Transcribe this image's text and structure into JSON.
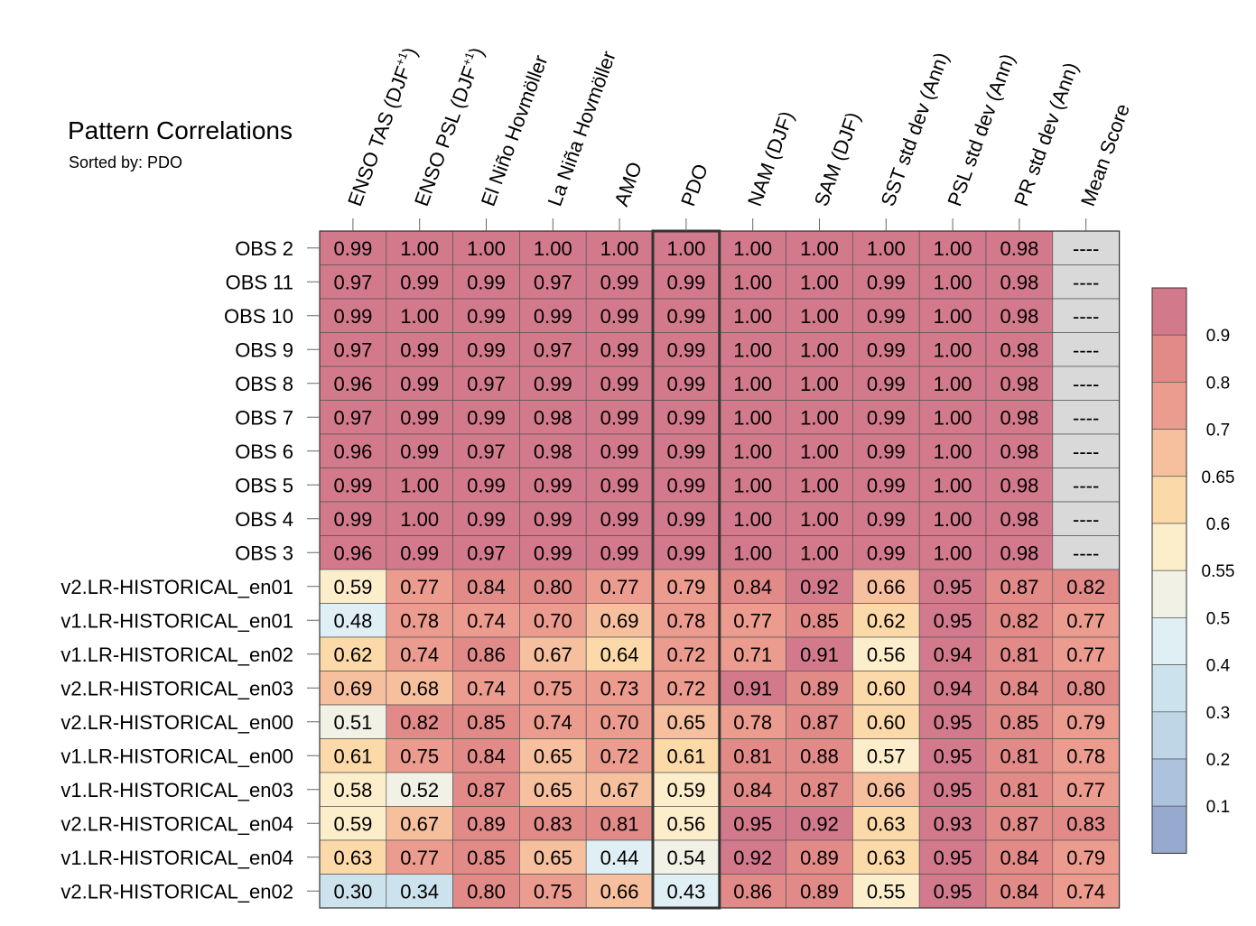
{
  "chart_data": {
    "type": "heatmap",
    "title": "Pattern Correlations",
    "subtitle": "Sorted by: PDO",
    "columns": [
      {
        "pre": "ENSO TAS (DJF",
        "sup": "+1",
        "post": ")"
      },
      {
        "pre": "ENSO PSL (DJF",
        "sup": "+1",
        "post": ")"
      },
      {
        "pre": "El Niño Hovmöller",
        "sup": "",
        "post": ""
      },
      {
        "pre": "La Niña Hovmöller",
        "sup": "",
        "post": ""
      },
      {
        "pre": "AMO",
        "sup": "",
        "post": ""
      },
      {
        "pre": "PDO",
        "sup": "",
        "post": ""
      },
      {
        "pre": "NAM (DJF)",
        "sup": "",
        "post": ""
      },
      {
        "pre": "SAM (DJF)",
        "sup": "",
        "post": ""
      },
      {
        "pre": "SST std dev (Ann)",
        "sup": "",
        "post": ""
      },
      {
        "pre": "PSL std dev (Ann)",
        "sup": "",
        "post": ""
      },
      {
        "pre": "PR std dev (Ann)",
        "sup": "",
        "post": ""
      },
      {
        "pre": "Mean Score",
        "sup": "",
        "post": ""
      }
    ],
    "highlight_column": "PDO",
    "rows": [
      {
        "label": "OBS 2",
        "values": [
          "0.99",
          "1.00",
          "1.00",
          "1.00",
          "1.00",
          "1.00",
          "1.00",
          "1.00",
          "1.00",
          "1.00",
          "0.98",
          "----"
        ]
      },
      {
        "label": "OBS 11",
        "values": [
          "0.97",
          "0.99",
          "0.99",
          "0.97",
          "0.99",
          "0.99",
          "1.00",
          "1.00",
          "0.99",
          "1.00",
          "0.98",
          "----"
        ]
      },
      {
        "label": "OBS 10",
        "values": [
          "0.99",
          "1.00",
          "0.99",
          "0.99",
          "0.99",
          "0.99",
          "1.00",
          "1.00",
          "0.99",
          "1.00",
          "0.98",
          "----"
        ]
      },
      {
        "label": "OBS 9",
        "values": [
          "0.97",
          "0.99",
          "0.99",
          "0.97",
          "0.99",
          "0.99",
          "1.00",
          "1.00",
          "0.99",
          "1.00",
          "0.98",
          "----"
        ]
      },
      {
        "label": "OBS 8",
        "values": [
          "0.96",
          "0.99",
          "0.97",
          "0.99",
          "0.99",
          "0.99",
          "1.00",
          "1.00",
          "0.99",
          "1.00",
          "0.98",
          "----"
        ]
      },
      {
        "label": "OBS 7",
        "values": [
          "0.97",
          "0.99",
          "0.99",
          "0.98",
          "0.99",
          "0.99",
          "1.00",
          "1.00",
          "0.99",
          "1.00",
          "0.98",
          "----"
        ]
      },
      {
        "label": "OBS 6",
        "values": [
          "0.96",
          "0.99",
          "0.97",
          "0.98",
          "0.99",
          "0.99",
          "1.00",
          "1.00",
          "0.99",
          "1.00",
          "0.98",
          "----"
        ]
      },
      {
        "label": "OBS 5",
        "values": [
          "0.99",
          "1.00",
          "0.99",
          "0.99",
          "0.99",
          "0.99",
          "1.00",
          "1.00",
          "0.99",
          "1.00",
          "0.98",
          "----"
        ]
      },
      {
        "label": "OBS 4",
        "values": [
          "0.99",
          "1.00",
          "0.99",
          "0.99",
          "0.99",
          "0.99",
          "1.00",
          "1.00",
          "0.99",
          "1.00",
          "0.98",
          "----"
        ]
      },
      {
        "label": "OBS 3",
        "values": [
          "0.96",
          "0.99",
          "0.97",
          "0.99",
          "0.99",
          "0.99",
          "1.00",
          "1.00",
          "0.99",
          "1.00",
          "0.98",
          "----"
        ]
      },
      {
        "label": "v2.LR-HISTORICAL_en01",
        "values": [
          "0.59",
          "0.77",
          "0.84",
          "0.80",
          "0.77",
          "0.79",
          "0.84",
          "0.92",
          "0.66",
          "0.95",
          "0.87",
          "0.82"
        ]
      },
      {
        "label": "v1.LR-HISTORICAL_en01",
        "values": [
          "0.48",
          "0.78",
          "0.74",
          "0.70",
          "0.69",
          "0.78",
          "0.77",
          "0.85",
          "0.62",
          "0.95",
          "0.82",
          "0.77"
        ]
      },
      {
        "label": "v1.LR-HISTORICAL_en02",
        "values": [
          "0.62",
          "0.74",
          "0.86",
          "0.67",
          "0.64",
          "0.72",
          "0.71",
          "0.91",
          "0.56",
          "0.94",
          "0.81",
          "0.77"
        ]
      },
      {
        "label": "v2.LR-HISTORICAL_en03",
        "values": [
          "0.69",
          "0.68",
          "0.74",
          "0.75",
          "0.73",
          "0.72",
          "0.91",
          "0.89",
          "0.60",
          "0.94",
          "0.84",
          "0.80"
        ]
      },
      {
        "label": "v2.LR-HISTORICAL_en00",
        "values": [
          "0.51",
          "0.82",
          "0.85",
          "0.74",
          "0.70",
          "0.65",
          "0.78",
          "0.87",
          "0.60",
          "0.95",
          "0.85",
          "0.79"
        ]
      },
      {
        "label": "v1.LR-HISTORICAL_en00",
        "values": [
          "0.61",
          "0.75",
          "0.84",
          "0.65",
          "0.72",
          "0.61",
          "0.81",
          "0.88",
          "0.57",
          "0.95",
          "0.81",
          "0.78"
        ]
      },
      {
        "label": "v1.LR-HISTORICAL_en03",
        "values": [
          "0.58",
          "0.52",
          "0.87",
          "0.65",
          "0.67",
          "0.59",
          "0.84",
          "0.87",
          "0.66",
          "0.95",
          "0.81",
          "0.77"
        ]
      },
      {
        "label": "v2.LR-HISTORICAL_en04",
        "values": [
          "0.59",
          "0.67",
          "0.89",
          "0.83",
          "0.81",
          "0.56",
          "0.95",
          "0.92",
          "0.63",
          "0.93",
          "0.87",
          "0.83"
        ]
      },
      {
        "label": "v1.LR-HISTORICAL_en04",
        "values": [
          "0.63",
          "0.77",
          "0.85",
          "0.65",
          "0.44",
          "0.54",
          "0.92",
          "0.89",
          "0.63",
          "0.95",
          "0.84",
          "0.79"
        ]
      },
      {
        "label": "v2.LR-HISTORICAL_en02",
        "values": [
          "0.30",
          "0.34",
          "0.80",
          "0.75",
          "0.66",
          "0.43",
          "0.86",
          "0.89",
          "0.55",
          "0.95",
          "0.84",
          "0.74"
        ]
      }
    ],
    "missing_color": "#d9d9d9",
    "colorbar": {
      "ticks": [
        "0.9",
        "0.8",
        "0.7",
        "0.65",
        "0.6",
        "0.55",
        "0.5",
        "0.4",
        "0.3",
        "0.2",
        "0.1"
      ],
      "levels": [
        0.1,
        0.2,
        0.3,
        0.4,
        0.5,
        0.55,
        0.6,
        0.65,
        0.7,
        0.8,
        0.9
      ],
      "colors": [
        "#98a9d0",
        "#adc2dd",
        "#bed6e6",
        "#cce3ed",
        "#e0eff4",
        "#f1f1e6",
        "#fdeecb",
        "#fcd9a8",
        "#f6bf9e",
        "#ec9b8f",
        "#e18a88",
        "#d27a8c"
      ]
    }
  }
}
